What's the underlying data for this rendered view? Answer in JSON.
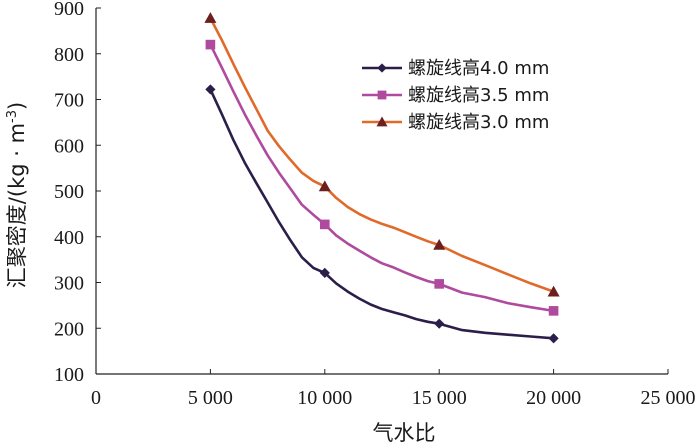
{
  "chart_data": {
    "type": "line",
    "title": "",
    "xlabel": "气水比",
    "ylabel": "汇聚密度/(kg · m",
    "ylabel_sup": "-3",
    "ylabel_close": ")",
    "xlim": [
      0,
      25000
    ],
    "ylim": [
      100,
      900
    ],
    "x_ticks": [
      0,
      5000,
      10000,
      15000,
      20000,
      25000
    ],
    "x_tick_labels": [
      "0",
      "5 000",
      "10 000",
      "15 000",
      "20 000",
      "25 000"
    ],
    "y_ticks": [
      100,
      200,
      300,
      400,
      500,
      600,
      700,
      800,
      900
    ],
    "y_tick_labels": [
      "100",
      "200",
      "300",
      "400",
      "500",
      "600",
      "700",
      "800",
      "900"
    ],
    "legend_position": "top-right",
    "series": [
      {
        "name": "螺旋线高4.0 mm",
        "color": "#2b1f4a",
        "marker": "diamond",
        "markers_x": [
          5000,
          10000,
          15000,
          20000
        ],
        "markers_y": [
          722,
          321,
          210,
          178
        ],
        "curve_x": [
          5000,
          5500,
          6000,
          6500,
          7000,
          7500,
          8000,
          8500,
          9000,
          9500,
          10000,
          10500,
          11000,
          11500,
          12000,
          12500,
          13000,
          13500,
          14000,
          14500,
          15000,
          16000,
          17000,
          18000,
          19000,
          20000
        ],
        "curve_y": [
          722,
          668,
          612,
          562,
          518,
          475,
          432,
          392,
          355,
          332,
          321,
          298,
          280,
          265,
          252,
          242,
          235,
          228,
          220,
          214,
          210,
          196,
          190,
          186,
          182,
          178
        ]
      },
      {
        "name": "螺旋线高3.5 mm",
        "color": "#b04a9e",
        "marker": "square",
        "markers_x": [
          5000,
          10000,
          15000,
          20000
        ],
        "markers_y": [
          820,
          427,
          297,
          238
        ],
        "curve_x": [
          5000,
          5500,
          6000,
          6500,
          7000,
          7500,
          8000,
          8500,
          9000,
          9500,
          10000,
          10500,
          11000,
          11500,
          12000,
          12500,
          13000,
          13500,
          14000,
          14500,
          15000,
          16000,
          17000,
          18000,
          19000,
          20000
        ],
        "curve_y": [
          820,
          770,
          718,
          668,
          622,
          578,
          540,
          505,
          470,
          448,
          427,
          403,
          385,
          370,
          355,
          342,
          333,
          322,
          312,
          303,
          297,
          278,
          268,
          255,
          246,
          238
        ]
      },
      {
        "name": "螺旋线高3.0 mm",
        "color": "#e06a2a",
        "marker": "triangle",
        "markers_x": [
          5000,
          10000,
          15000,
          20000
        ],
        "markers_y": [
          878,
          510,
          382,
          280
        ],
        "curve_x": [
          5000,
          5500,
          6000,
          6500,
          7000,
          7500,
          8000,
          8500,
          9000,
          9500,
          10000,
          10500,
          11000,
          11500,
          12000,
          12500,
          13000,
          13500,
          14000,
          14500,
          15000,
          16000,
          17000,
          18000,
          19000,
          20000
        ],
        "curve_y": [
          878,
          830,
          778,
          728,
          680,
          632,
          598,
          568,
          540,
          522,
          510,
          485,
          465,
          450,
          438,
          428,
          420,
          410,
          400,
          390,
          382,
          358,
          338,
          318,
          298,
          280
        ]
      }
    ]
  }
}
